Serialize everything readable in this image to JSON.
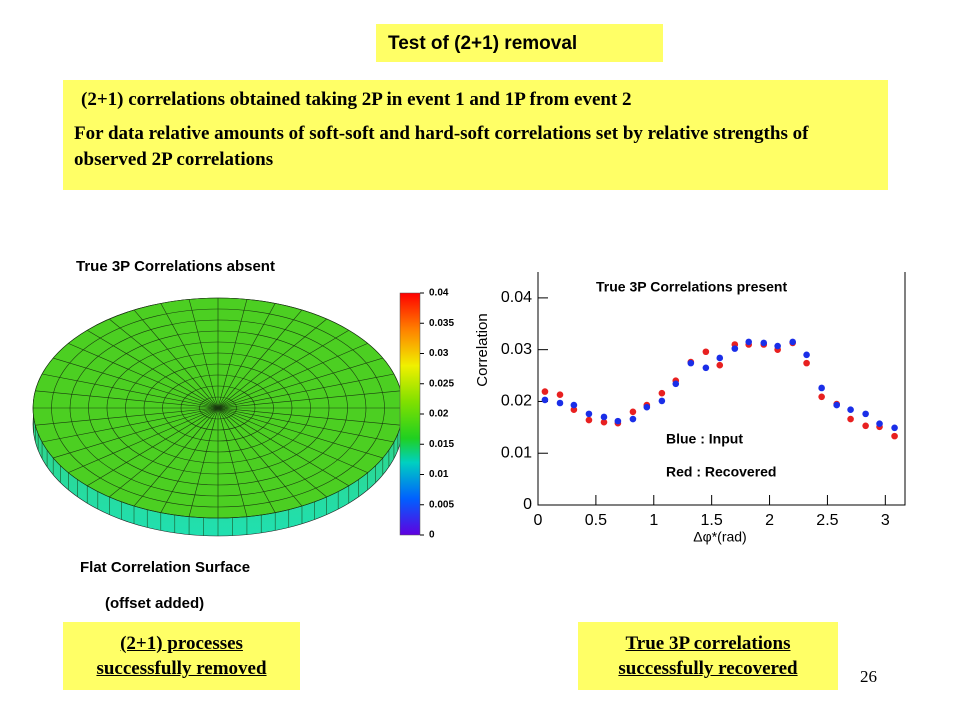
{
  "slide": {
    "title": "Test of (2+1) removal",
    "box": {
      "line1": "(2+1) correlations obtained taking 2P in event 1 and 1P from event 2",
      "line2": "For data relative amounts of soft-soft and hard-soft correlations set by relative strengths of observed 2P correlations"
    },
    "left_panel": {
      "label": "True 3P Correlations absent",
      "caption1": "Flat Correlation Surface",
      "caption2": "(offset added)",
      "colorbar": {
        "lim": [
          0,
          0.04
        ],
        "ticks": [
          0,
          0.005,
          0.01,
          0.015,
          0.02,
          0.025,
          0.03,
          0.035,
          0.04
        ]
      }
    },
    "conclusions": [
      "(2+1) processes successfully removed",
      "True 3P correlations successfully recovered"
    ],
    "page_number": 26
  },
  "chart_data": {
    "type": "scatter",
    "title": "True 3P Correlations present",
    "x_label": "Δφ*(rad)",
    "y_label": "Correlation",
    "annotations": [
      "Blue : Input",
      "Red : Recovered"
    ],
    "x": [
      0.06,
      0.19,
      0.31,
      0.44,
      0.57,
      0.69,
      0.82,
      0.94,
      1.07,
      1.19,
      1.32,
      1.45,
      1.57,
      1.7,
      1.82,
      1.95,
      2.07,
      2.2,
      2.32,
      2.45,
      2.58,
      2.7,
      2.83,
      2.95,
      3.08
    ],
    "series": [
      {
        "color": "#e82020",
        "values": [
          0.0219,
          0.0213,
          0.0184,
          0.0164,
          0.016,
          0.0158,
          0.018,
          0.0193,
          0.0216,
          0.024,
          0.0276,
          0.0296,
          0.027,
          0.031,
          0.031,
          0.031,
          0.03,
          0.0313,
          0.0274,
          0.0209,
          0.0195,
          0.0166,
          0.0153,
          0.0151,
          0.0133
        ]
      },
      {
        "color": "#1a2ee8",
        "values": [
          0.0203,
          0.0197,
          0.0193,
          0.0176,
          0.017,
          0.0162,
          0.0166,
          0.0189,
          0.0201,
          0.0234,
          0.0274,
          0.0265,
          0.0284,
          0.0302,
          0.0315,
          0.0313,
          0.0307,
          0.0315,
          0.029,
          0.0226,
          0.0193,
          0.0184,
          0.0176,
          0.0157,
          0.0149
        ]
      }
    ],
    "xlim": [
      0,
      3.17
    ],
    "ylim": [
      0,
      0.045
    ],
    "xticks": [
      0,
      0.5,
      1,
      1.5,
      2,
      2.5,
      3
    ],
    "yticks": [
      0,
      0.01,
      0.02,
      0.03,
      0.04
    ]
  }
}
